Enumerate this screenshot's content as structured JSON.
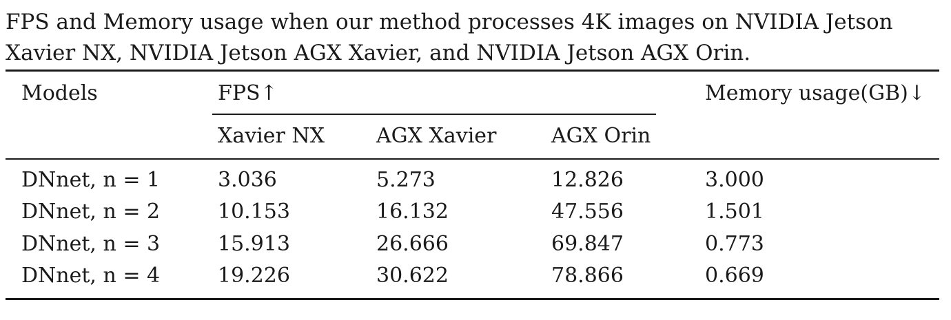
{
  "caption": "FPS and Memory usage when our method processes 4K images on NVIDIA Jetson Xavier NX, NVIDIA Jetson AGX Xavier, and NVIDIA Jetson AGX Orin.",
  "table": {
    "headers": {
      "models": "Models",
      "fps": "FPS↑",
      "memory": "Memory usage(GB)↓",
      "sub": [
        "Xavier NX",
        "AGX Xavier",
        "AGX Orin"
      ]
    },
    "rows": [
      {
        "model": "DNnet, n = 1",
        "xavier_nx": "3.036",
        "agx_xavier": "5.273",
        "agx_orin": "12.826",
        "memory": "3.000"
      },
      {
        "model": "DNnet, n = 2",
        "xavier_nx": "10.153",
        "agx_xavier": "16.132",
        "agx_orin": "47.556",
        "memory": "1.501"
      },
      {
        "model": "DNnet, n = 3",
        "xavier_nx": "15.913",
        "agx_xavier": "26.666",
        "agx_orin": "69.847",
        "memory": "0.773"
      },
      {
        "model": "DNnet, n = 4",
        "xavier_nx": "19.226",
        "agx_xavier": "30.622",
        "agx_orin": "78.866",
        "memory": "0.669"
      }
    ]
  }
}
